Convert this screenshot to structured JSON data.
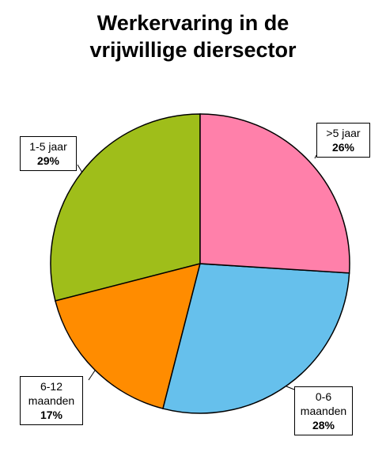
{
  "chart_data": {
    "type": "pie",
    "title": [
      "Werkervaring in de",
      "vrijwillige diersector"
    ],
    "categories": [
      ">5 jaar",
      "0-6 maanden",
      "6-12 maanden",
      "1-5 jaar"
    ],
    "values": [
      26,
      28,
      17,
      29
    ],
    "value_labels": [
      "26%",
      "28%",
      "17%",
      "29%"
    ],
    "colors": [
      "#ff80aa",
      "#66c0ec",
      "#ff8c00",
      "#9fbe1a"
    ]
  }
}
